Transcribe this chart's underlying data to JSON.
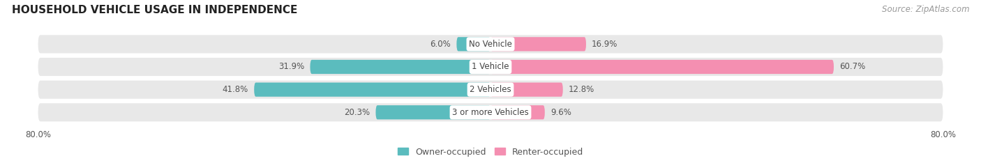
{
  "title": "HOUSEHOLD VEHICLE USAGE IN INDEPENDENCE",
  "source_text": "Source: ZipAtlas.com",
  "categories": [
    "No Vehicle",
    "1 Vehicle",
    "2 Vehicles",
    "3 or more Vehicles"
  ],
  "owner_values": [
    6.0,
    31.9,
    41.8,
    20.3
  ],
  "renter_values": [
    16.9,
    60.7,
    12.8,
    9.6
  ],
  "owner_color": "#5bbcbe",
  "renter_color": "#f48fb1",
  "bar_bg_color": "#e8e8e8",
  "owner_label": "Owner-occupied",
  "renter_label": "Renter-occupied",
  "xlim_min": -85,
  "xlim_max": 85,
  "bar_height": 0.62,
  "background_color": "#ffffff",
  "title_fontsize": 11,
  "source_fontsize": 8.5,
  "value_fontsize": 8.5,
  "category_fontsize": 8.5,
  "legend_fontsize": 9
}
